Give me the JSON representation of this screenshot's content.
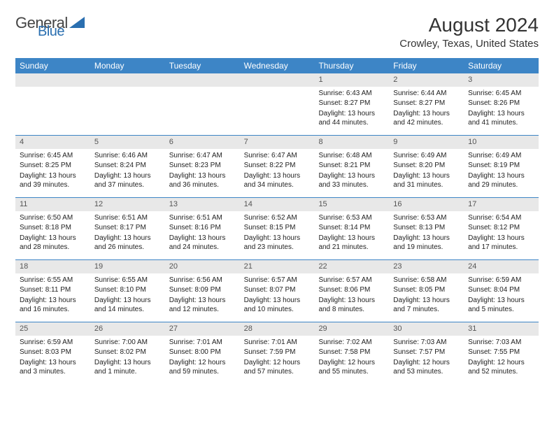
{
  "brand": {
    "name_a": "General",
    "name_b": "Blue",
    "accent_color": "#2a6fb0"
  },
  "title": "August 2024",
  "subtitle": "Crowley, Texas, United States",
  "style": {
    "header_bg": "#3d85c6",
    "header_fg": "#ffffff",
    "daynum_bg": "#e8e8e8",
    "daynum_fg": "#555555",
    "border_color": "#3d85c6",
    "body_fg": "#222222"
  },
  "day_labels": [
    "Sunday",
    "Monday",
    "Tuesday",
    "Wednesday",
    "Thursday",
    "Friday",
    "Saturday"
  ],
  "leading_blanks": 4,
  "days": [
    {
      "n": 1,
      "sunrise": "6:43 AM",
      "sunset": "8:27 PM",
      "daylight": "13 hours and 44 minutes."
    },
    {
      "n": 2,
      "sunrise": "6:44 AM",
      "sunset": "8:27 PM",
      "daylight": "13 hours and 42 minutes."
    },
    {
      "n": 3,
      "sunrise": "6:45 AM",
      "sunset": "8:26 PM",
      "daylight": "13 hours and 41 minutes."
    },
    {
      "n": 4,
      "sunrise": "6:45 AM",
      "sunset": "8:25 PM",
      "daylight": "13 hours and 39 minutes."
    },
    {
      "n": 5,
      "sunrise": "6:46 AM",
      "sunset": "8:24 PM",
      "daylight": "13 hours and 37 minutes."
    },
    {
      "n": 6,
      "sunrise": "6:47 AM",
      "sunset": "8:23 PM",
      "daylight": "13 hours and 36 minutes."
    },
    {
      "n": 7,
      "sunrise": "6:47 AM",
      "sunset": "8:22 PM",
      "daylight": "13 hours and 34 minutes."
    },
    {
      "n": 8,
      "sunrise": "6:48 AM",
      "sunset": "8:21 PM",
      "daylight": "13 hours and 33 minutes."
    },
    {
      "n": 9,
      "sunrise": "6:49 AM",
      "sunset": "8:20 PM",
      "daylight": "13 hours and 31 minutes."
    },
    {
      "n": 10,
      "sunrise": "6:49 AM",
      "sunset": "8:19 PM",
      "daylight": "13 hours and 29 minutes."
    },
    {
      "n": 11,
      "sunrise": "6:50 AM",
      "sunset": "8:18 PM",
      "daylight": "13 hours and 28 minutes."
    },
    {
      "n": 12,
      "sunrise": "6:51 AM",
      "sunset": "8:17 PM",
      "daylight": "13 hours and 26 minutes."
    },
    {
      "n": 13,
      "sunrise": "6:51 AM",
      "sunset": "8:16 PM",
      "daylight": "13 hours and 24 minutes."
    },
    {
      "n": 14,
      "sunrise": "6:52 AM",
      "sunset": "8:15 PM",
      "daylight": "13 hours and 23 minutes."
    },
    {
      "n": 15,
      "sunrise": "6:53 AM",
      "sunset": "8:14 PM",
      "daylight": "13 hours and 21 minutes."
    },
    {
      "n": 16,
      "sunrise": "6:53 AM",
      "sunset": "8:13 PM",
      "daylight": "13 hours and 19 minutes."
    },
    {
      "n": 17,
      "sunrise": "6:54 AM",
      "sunset": "8:12 PM",
      "daylight": "13 hours and 17 minutes."
    },
    {
      "n": 18,
      "sunrise": "6:55 AM",
      "sunset": "8:11 PM",
      "daylight": "13 hours and 16 minutes."
    },
    {
      "n": 19,
      "sunrise": "6:55 AM",
      "sunset": "8:10 PM",
      "daylight": "13 hours and 14 minutes."
    },
    {
      "n": 20,
      "sunrise": "6:56 AM",
      "sunset": "8:09 PM",
      "daylight": "13 hours and 12 minutes."
    },
    {
      "n": 21,
      "sunrise": "6:57 AM",
      "sunset": "8:07 PM",
      "daylight": "13 hours and 10 minutes."
    },
    {
      "n": 22,
      "sunrise": "6:57 AM",
      "sunset": "8:06 PM",
      "daylight": "13 hours and 8 minutes."
    },
    {
      "n": 23,
      "sunrise": "6:58 AM",
      "sunset": "8:05 PM",
      "daylight": "13 hours and 7 minutes."
    },
    {
      "n": 24,
      "sunrise": "6:59 AM",
      "sunset": "8:04 PM",
      "daylight": "13 hours and 5 minutes."
    },
    {
      "n": 25,
      "sunrise": "6:59 AM",
      "sunset": "8:03 PM",
      "daylight": "13 hours and 3 minutes."
    },
    {
      "n": 26,
      "sunrise": "7:00 AM",
      "sunset": "8:02 PM",
      "daylight": "13 hours and 1 minute."
    },
    {
      "n": 27,
      "sunrise": "7:01 AM",
      "sunset": "8:00 PM",
      "daylight": "12 hours and 59 minutes."
    },
    {
      "n": 28,
      "sunrise": "7:01 AM",
      "sunset": "7:59 PM",
      "daylight": "12 hours and 57 minutes."
    },
    {
      "n": 29,
      "sunrise": "7:02 AM",
      "sunset": "7:58 PM",
      "daylight": "12 hours and 55 minutes."
    },
    {
      "n": 30,
      "sunrise": "7:03 AM",
      "sunset": "7:57 PM",
      "daylight": "12 hours and 53 minutes."
    },
    {
      "n": 31,
      "sunrise": "7:03 AM",
      "sunset": "7:55 PM",
      "daylight": "12 hours and 52 minutes."
    }
  ]
}
